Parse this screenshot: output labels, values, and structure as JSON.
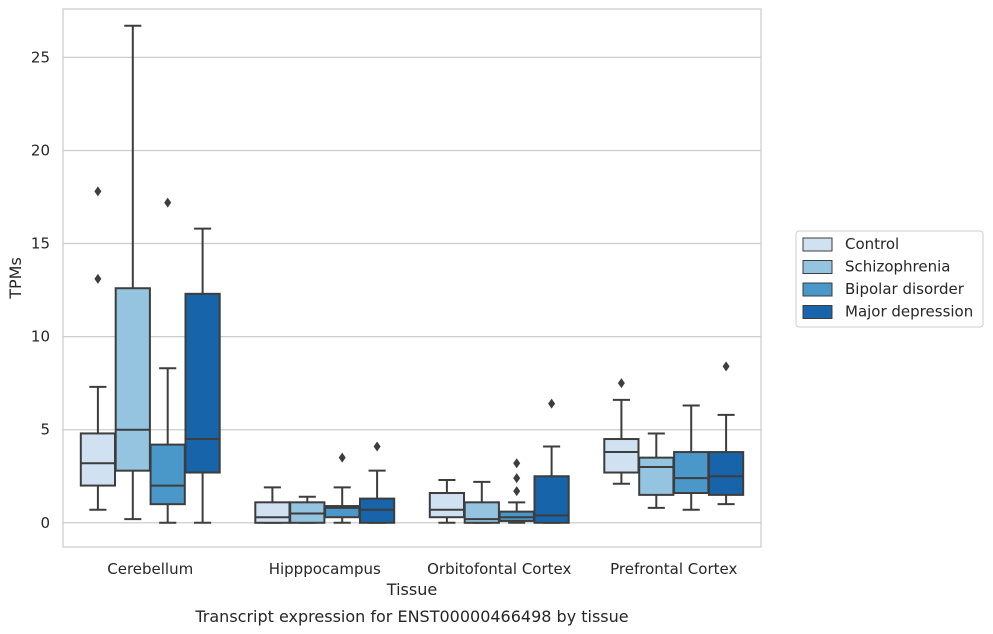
{
  "chart_data": {
    "type": "box",
    "xlabel": "Tissue",
    "ylabel": "TPMs",
    "caption": "Transcript expression for ENST00000466498 by tissue",
    "ylim": [
      -1.3,
      27.6
    ],
    "yticks": [
      0,
      5,
      10,
      15,
      20,
      25
    ],
    "grid": "horizontal",
    "legend_position": "right",
    "categories": [
      "Cerebellum",
      "Hipppocampus",
      "Orbitofontal Cortex",
      "Prefrontal Cortex"
    ],
    "series": [
      {
        "name": "Control",
        "color": "#d0e1f2",
        "boxes": [
          {
            "whislo": 0.7,
            "q1": 2.0,
            "med": 3.2,
            "q3": 4.8,
            "whishi": 7.3,
            "fliers": [
              13.1,
              17.8
            ]
          },
          {
            "whislo": 0.0,
            "q1": 0.0,
            "med": 0.3,
            "q3": 1.1,
            "whishi": 1.9,
            "fliers": []
          },
          {
            "whislo": 0.0,
            "q1": 0.3,
            "med": 0.7,
            "q3": 1.6,
            "whishi": 2.3,
            "fliers": []
          },
          {
            "whislo": 2.1,
            "q1": 2.7,
            "med": 3.8,
            "q3": 4.5,
            "whishi": 6.6,
            "fliers": [
              7.5
            ]
          }
        ]
      },
      {
        "name": "Schizophrenia",
        "color": "#94c4df",
        "boxes": [
          {
            "whislo": 0.2,
            "q1": 2.8,
            "med": 5.0,
            "q3": 12.6,
            "whishi": 26.7,
            "fliers": []
          },
          {
            "whislo": 0.0,
            "q1": 0.0,
            "med": 0.5,
            "q3": 1.1,
            "whishi": 1.4,
            "fliers": []
          },
          {
            "whislo": 0.0,
            "q1": 0.0,
            "med": 0.2,
            "q3": 1.1,
            "whishi": 2.2,
            "fliers": []
          },
          {
            "whislo": 0.8,
            "q1": 1.5,
            "med": 3.0,
            "q3": 3.5,
            "whishi": 4.8,
            "fliers": []
          }
        ]
      },
      {
        "name": "Bipolar disorder",
        "color": "#4a98c9",
        "boxes": [
          {
            "whislo": 0.0,
            "q1": 1.0,
            "med": 2.0,
            "q3": 4.2,
            "whishi": 8.3,
            "fliers": [
              17.2
            ]
          },
          {
            "whislo": 0.0,
            "q1": 0.3,
            "med": 0.8,
            "q3": 0.9,
            "whishi": 1.9,
            "fliers": [
              3.5
            ]
          },
          {
            "whislo": 0.0,
            "q1": 0.1,
            "med": 0.3,
            "q3": 0.6,
            "whishi": 1.1,
            "fliers": [
              1.7,
              2.4,
              3.2
            ]
          },
          {
            "whislo": 0.7,
            "q1": 1.6,
            "med": 2.4,
            "q3": 3.8,
            "whishi": 6.3,
            "fliers": []
          }
        ]
      },
      {
        "name": "Major depression",
        "color": "#1764ab",
        "boxes": [
          {
            "whislo": 0.0,
            "q1": 2.7,
            "med": 4.5,
            "q3": 12.3,
            "whishi": 15.8,
            "fliers": []
          },
          {
            "whislo": 0.0,
            "q1": 0.0,
            "med": 0.7,
            "q3": 1.3,
            "whishi": 2.8,
            "fliers": [
              4.1
            ]
          },
          {
            "whislo": 0.0,
            "q1": 0.0,
            "med": 0.4,
            "q3": 2.5,
            "whishi": 4.1,
            "fliers": [
              6.4
            ]
          },
          {
            "whislo": 1.0,
            "q1": 1.5,
            "med": 2.5,
            "q3": 3.8,
            "whishi": 5.8,
            "fliers": [
              8.4
            ]
          }
        ]
      }
    ]
  }
}
